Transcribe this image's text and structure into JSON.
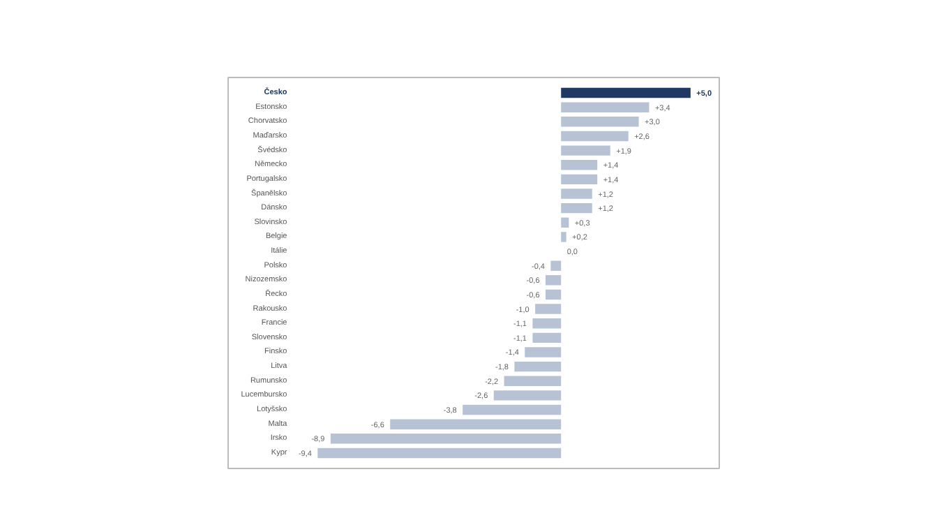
{
  "chart_data": {
    "type": "bar",
    "orientation": "horizontal",
    "categories": [
      "Česko",
      "Estonsko",
      "Chorvatsko",
      "Maďarsko",
      "Švédsko",
      "Německo",
      "Portugalsko",
      "Španělsko",
      "Dánsko",
      "Slovinsko",
      "Belgie",
      "Itálie",
      "Polsko",
      "Nizozemsko",
      "Řecko",
      "Rakousko",
      "Francie",
      "Slovensko",
      "Finsko",
      "Litva",
      "Rumunsko",
      "Lucembursko",
      "Lotyšsko",
      "Malta",
      "Irsko",
      "Kypr"
    ],
    "values": [
      5.0,
      3.4,
      3.0,
      2.6,
      1.9,
      1.4,
      1.4,
      1.2,
      1.2,
      0.3,
      0.2,
      0.0,
      -0.4,
      -0.6,
      -0.6,
      -1.0,
      -1.1,
      -1.1,
      -1.4,
      -1.8,
      -2.2,
      -2.6,
      -3.8,
      -6.6,
      -8.9,
      -9.4
    ],
    "value_labels": [
      "+5,0",
      "+3,4",
      "+3,0",
      "+2,6",
      "+1,9",
      "+1,4",
      "+1,4",
      "+1,2",
      "+1,2",
      "+0,3",
      "+0,2",
      "0,0",
      "-0,4",
      "-0,6",
      "-0,6",
      "-1,0",
      "-1,1",
      "-1,1",
      "-1,4",
      "-1,8",
      "-2,2",
      "-2,6",
      "-3,8",
      "-6,6",
      "-8,9",
      "-9,4"
    ],
    "colors": [
      "#1f3864",
      "#b7c3d5",
      "#b7c3d5",
      "#b7c3d5",
      "#b7c3d5",
      "#b7c3d5",
      "#b7c3d5",
      "#b7c3d5",
      "#b7c3d5",
      "#b7c3d5",
      "#b7c3d5",
      "#b7c3d5",
      "#b7c3d5",
      "#b7c3d5",
      "#b7c3d5",
      "#b7c3d5",
      "#b7c3d5",
      "#b7c3d5",
      "#b7c3d5",
      "#b7c3d5",
      "#b7c3d5",
      "#b7c3d5",
      "#b7c3d5",
      "#b7c3d5",
      "#b7c3d5",
      "#b7c3d5"
    ],
    "grid": false
  }
}
